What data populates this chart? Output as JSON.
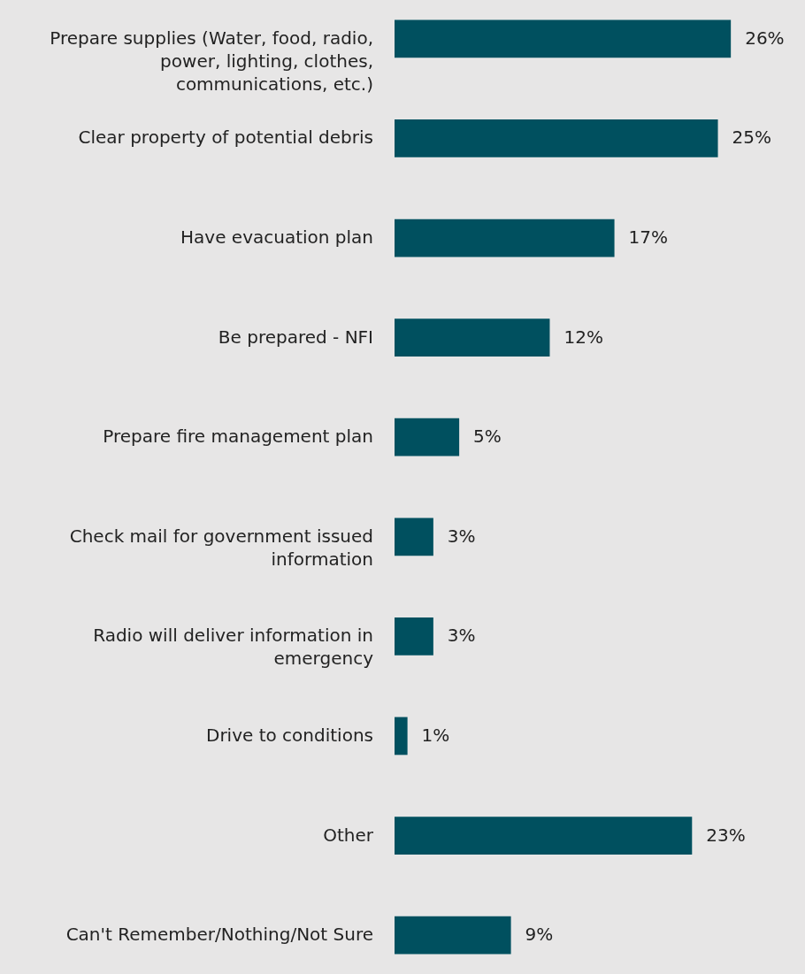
{
  "chart_data": {
    "type": "bar",
    "orientation": "horizontal",
    "categories": [
      "Prepare supplies (Water, food, radio, power, lighting, clothes, communications, etc.)",
      "Clear property of potential debris",
      "Have evacuation plan",
      "Be prepared - NFI",
      "Prepare fire management plan",
      "Check mail for government issued information",
      "Radio will deliver information in emergency",
      "Drive to conditions",
      "Other",
      "Can't Remember/Nothing/Not Sure"
    ],
    "values": [
      26,
      25,
      17,
      12,
      5,
      3,
      3,
      1,
      23,
      9
    ],
    "value_labels": [
      "26%",
      "25%",
      "17%",
      "12%",
      "5%",
      "3%",
      "3%",
      "1%",
      "23%",
      "9%"
    ],
    "color": "#00505f"
  }
}
